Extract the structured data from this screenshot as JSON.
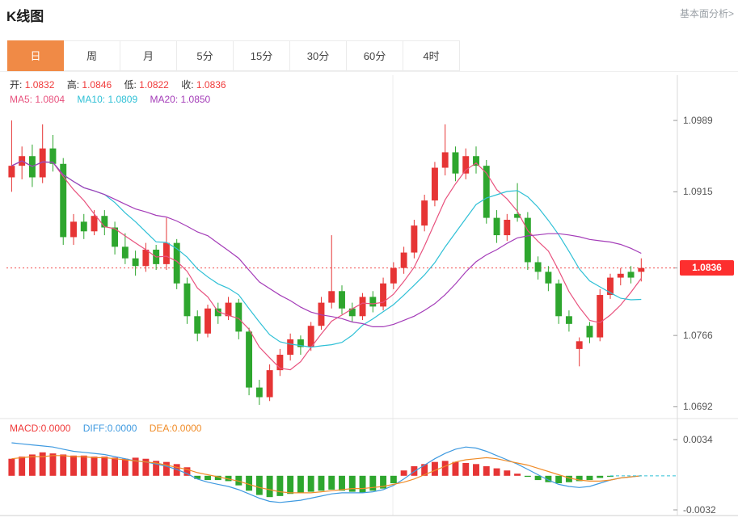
{
  "header": {
    "title": "K线图",
    "link_label": "基本面分析>"
  },
  "tabs": {
    "items": [
      {
        "label": "日",
        "active": true
      },
      {
        "label": "周"
      },
      {
        "label": "月"
      },
      {
        "label": "5分"
      },
      {
        "label": "15分"
      },
      {
        "label": "30分"
      },
      {
        "label": "60分"
      },
      {
        "label": "4时"
      }
    ]
  },
  "legend": {
    "ohlc": [
      {
        "label": "开:",
        "value": "1.0832"
      },
      {
        "label": "高:",
        "value": "1.0846"
      },
      {
        "label": "低:",
        "value": "1.0822"
      },
      {
        "label": "收:",
        "value": "1.0836"
      }
    ],
    "ma": [
      {
        "label": "MA5:",
        "value": "1.0804"
      },
      {
        "label": "MA10:",
        "value": "1.0809"
      },
      {
        "label": "MA20:",
        "value": "1.0850"
      }
    ],
    "macd": [
      {
        "label": "MACD:",
        "value": "0.0000"
      },
      {
        "label": "DIFF:",
        "value": "0.0000"
      },
      {
        "label": "DEA:",
        "value": "0.0000"
      }
    ]
  },
  "axis": {
    "main": [
      "1.0989",
      "1.0915",
      "1.0766",
      "1.0692"
    ],
    "price_tag": "1.0836",
    "macd": [
      "0.0034",
      "-0.0032"
    ]
  },
  "colors": {
    "up": "#e63535",
    "down": "#2ea62e",
    "ma5": "#e8527e",
    "ma10": "#2fc0d6",
    "ma20": "#a43cb8",
    "diff": "#3f9ae0",
    "dea": "#f08c28",
    "tab_active": "#f08a46",
    "price_line": "#f25050",
    "price_tag_bg": "#fd2f2f",
    "link": "#9aa0a6"
  },
  "chart_data": {
    "type": "candlestick",
    "title": "K线图 daily candlesticks with MA5/MA10/MA20 overlays and MACD sub-panel",
    "ylim": [
      1.0684,
      1.1036
    ],
    "axis_ticks": [
      1.0989,
      1.0915,
      1.0836,
      1.0766,
      1.0692
    ],
    "current_price": 1.0836,
    "slots": 65,
    "ohlc_display": {
      "open": 1.0832,
      "high": 1.0846,
      "low": 1.0822,
      "close": 1.0836
    },
    "ma_display": {
      "MA5": 1.0804,
      "MA10": 1.0809,
      "MA20": 1.085
    },
    "candles": [
      [
        1.093,
        1.0989,
        1.0915,
        1.0942
      ],
      [
        1.0942,
        1.0962,
        1.0928,
        1.0952
      ],
      [
        1.0952,
        1.0964,
        1.092,
        1.093
      ],
      [
        1.093,
        1.0985,
        1.0924,
        1.096
      ],
      [
        1.096,
        1.0974,
        1.0936,
        1.0944
      ],
      [
        1.0944,
        1.095,
        1.086,
        1.0868
      ],
      [
        1.0868,
        1.0892,
        1.086,
        1.0884
      ],
      [
        1.0884,
        1.0892,
        1.0866,
        1.0874
      ],
      [
        1.0874,
        1.0896,
        1.087,
        1.089
      ],
      [
        1.089,
        1.0896,
        1.087,
        1.0878
      ],
      [
        1.0878,
        1.0884,
        1.085,
        1.0858
      ],
      [
        1.0858,
        1.0872,
        1.084,
        1.0846
      ],
      [
        1.0846,
        1.0854,
        1.0828,
        1.0838
      ],
      [
        1.0838,
        1.0862,
        1.0832,
        1.0855
      ],
      [
        1.0855,
        1.086,
        1.0834,
        1.084
      ],
      [
        1.084,
        1.0888,
        1.0834,
        1.0862
      ],
      [
        1.0862,
        1.0866,
        1.0814,
        1.082
      ],
      [
        1.082,
        1.0826,
        1.0778,
        1.0786
      ],
      [
        1.0786,
        1.0792,
        1.076,
        1.0768
      ],
      [
        1.0768,
        1.0798,
        1.0764,
        1.0794
      ],
      [
        1.0794,
        1.08,
        1.0778,
        1.0786
      ],
      [
        1.0786,
        1.0806,
        1.0782,
        1.08
      ],
      [
        1.08,
        1.0804,
        1.0762,
        1.077
      ],
      [
        1.077,
        1.0774,
        1.0704,
        1.0712
      ],
      [
        1.0712,
        1.072,
        1.0694,
        1.0702
      ],
      [
        1.0702,
        1.0736,
        1.0698,
        1.073
      ],
      [
        1.073,
        1.0752,
        1.0724,
        1.0746
      ],
      [
        1.0746,
        1.0768,
        1.074,
        1.0762
      ],
      [
        1.0762,
        1.0766,
        1.0746,
        1.0754
      ],
      [
        1.0754,
        1.078,
        1.075,
        1.0776
      ],
      [
        1.0776,
        1.0806,
        1.0772,
        1.08
      ],
      [
        1.08,
        1.087,
        1.0794,
        1.0812
      ],
      [
        1.0812,
        1.0818,
        1.0788,
        1.0794
      ],
      [
        1.0794,
        1.08,
        1.078,
        1.0786
      ],
      [
        1.0786,
        1.081,
        1.0782,
        1.0806
      ],
      [
        1.0806,
        1.0812,
        1.079,
        1.0796
      ],
      [
        1.0796,
        1.0826,
        1.0792,
        1.082
      ],
      [
        1.082,
        1.0842,
        1.0814,
        1.0836
      ],
      [
        1.0836,
        1.0858,
        1.083,
        1.0852
      ],
      [
        1.0852,
        1.0886,
        1.0846,
        1.088
      ],
      [
        1.088,
        1.0912,
        1.0874,
        1.0906
      ],
      [
        1.0906,
        1.0946,
        1.09,
        1.094
      ],
      [
        1.094,
        1.0985,
        1.0932,
        1.0956
      ],
      [
        1.0956,
        1.0962,
        1.0926,
        1.0934
      ],
      [
        1.0934,
        1.096,
        1.0928,
        1.0952
      ],
      [
        1.0952,
        1.0962,
        1.0934,
        1.0942
      ],
      [
        1.0942,
        1.0948,
        1.0882,
        1.0888
      ],
      [
        1.0888,
        1.0896,
        1.0862,
        1.087
      ],
      [
        1.087,
        1.0892,
        1.0864,
        1.0886
      ],
      [
        1.0892,
        1.0924,
        1.0884,
        1.0888
      ],
      [
        1.0888,
        1.0894,
        1.0834,
        1.0842
      ],
      [
        1.0842,
        1.0848,
        1.0824,
        1.0832
      ],
      [
        1.0832,
        1.0838,
        1.0812,
        1.082
      ],
      [
        1.082,
        1.0824,
        1.0778,
        1.0786
      ],
      [
        1.0786,
        1.0792,
        1.077,
        1.0778
      ],
      [
        1.0752,
        1.0764,
        1.0734,
        1.076
      ],
      [
        1.0776,
        1.078,
        1.0758,
        1.0764
      ],
      [
        1.0764,
        1.0814,
        1.076,
        1.0808
      ],
      [
        1.0808,
        1.083,
        1.0804,
        1.0826
      ],
      [
        1.0826,
        1.0836,
        1.0818,
        1.083
      ],
      [
        1.0832,
        1.0838,
        1.082,
        1.0826
      ],
      [
        1.0832,
        1.0846,
        1.0822,
        1.0836
      ]
    ],
    "overlays": [
      "MA5",
      "MA10",
      "MA20"
    ],
    "macd": {
      "ylim": [
        -0.0032,
        0.0034
      ],
      "ticks": [
        0.0034,
        -0.0032
      ],
      "display": {
        "MACD": 0.0,
        "DIFF": 0.0,
        "DEA": 0.0
      },
      "hist": [
        0.0016,
        0.0018,
        0.002,
        0.0022,
        0.0021,
        0.002,
        0.0019,
        0.0019,
        0.0018,
        0.0018,
        0.0017,
        0.0016,
        0.0017,
        0.0016,
        0.0014,
        0.0013,
        0.0011,
        0.0008,
        -0.0003,
        -0.0004,
        -0.0004,
        -0.0005,
        -0.0009,
        -0.0014,
        -0.0018,
        -0.002,
        -0.0019,
        -0.0017,
        -0.0016,
        -0.0015,
        -0.0014,
        -0.0013,
        -0.0014,
        -0.0015,
        -0.0016,
        -0.0014,
        -0.0012,
        -0.0007,
        0.0005,
        0.0009,
        0.0011,
        0.0013,
        0.0014,
        0.0013,
        0.0012,
        0.0011,
        0.0009,
        0.0007,
        0.0005,
        0.0002,
        -0.0001,
        -0.0004,
        -0.0006,
        -0.0007,
        -0.0006,
        -0.0005,
        -0.0004,
        -0.0002,
        -0.0001,
        0.0,
        0.0,
        0.0
      ],
      "diff": [
        0.0031,
        0.003,
        0.0029,
        0.0028,
        0.0027,
        0.0025,
        0.0023,
        0.0022,
        0.0021,
        0.002,
        0.0018,
        0.0016,
        0.0014,
        0.0013,
        0.0011,
        0.0009,
        0.0006,
        0.0002,
        -0.0003,
        -0.0006,
        -0.0008,
        -0.001,
        -0.0013,
        -0.0017,
        -0.0021,
        -0.0024,
        -0.0025,
        -0.0024,
        -0.0023,
        -0.0021,
        -0.0019,
        -0.0017,
        -0.0016,
        -0.0016,
        -0.0016,
        -0.0015,
        -0.0013,
        -0.0009,
        -0.0003,
        0.0004,
        0.001,
        0.0016,
        0.0021,
        0.0025,
        0.0027,
        0.0026,
        0.0023,
        0.0019,
        0.0015,
        0.0011,
        0.0006,
        0.0001,
        -0.0004,
        -0.0008,
        -0.001,
        -0.0011,
        -0.001,
        -0.0007,
        -0.0004,
        -0.0002,
        -0.0001,
        0.0
      ],
      "dea": [
        0.0016,
        0.0017,
        0.0018,
        0.0018,
        0.0019,
        0.0019,
        0.0018,
        0.0018,
        0.0017,
        0.0017,
        0.0016,
        0.0015,
        0.0014,
        0.0013,
        0.0012,
        0.001,
        0.0008,
        0.0006,
        0.0003,
        0.0001,
        -0.0001,
        -0.0003,
        -0.0005,
        -0.0008,
        -0.0011,
        -0.0013,
        -0.0015,
        -0.0016,
        -0.0016,
        -0.0016,
        -0.0015,
        -0.0014,
        -0.0013,
        -0.0012,
        -0.0012,
        -0.0011,
        -0.001,
        -0.0008,
        -0.0006,
        -0.0003,
        0.0001,
        0.0005,
        0.0009,
        0.0013,
        0.0015,
        0.0016,
        0.0017,
        0.0016,
        0.0014,
        0.0012,
        0.001,
        0.0007,
        0.0004,
        0.0001,
        -0.0002,
        -0.0004,
        -0.0005,
        -0.0005,
        -0.0004,
        -0.0002,
        -0.0001,
        0.0
      ]
    }
  }
}
